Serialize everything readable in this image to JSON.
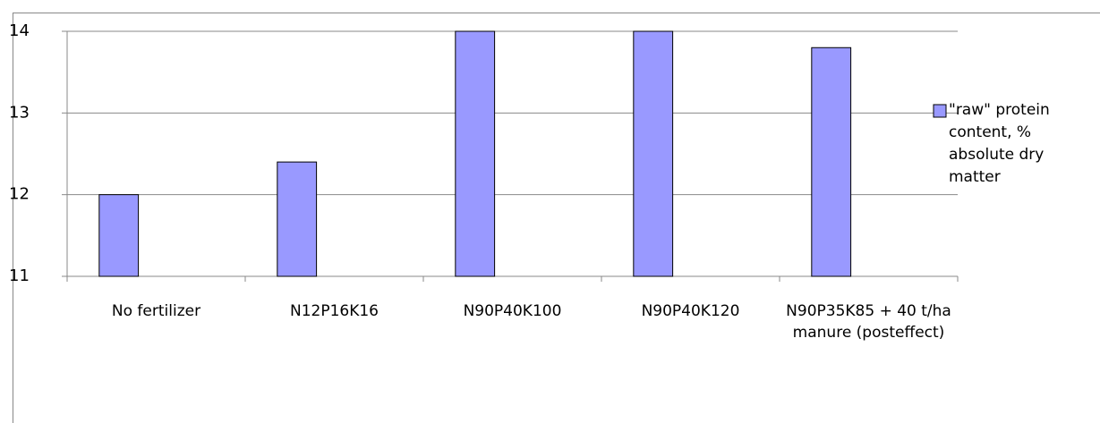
{
  "chart_data": {
    "type": "bar",
    "categories": [
      "No fertilizer",
      "N12P16K16",
      "N90P40K100",
      "N90P40K120",
      "N90P35K85 + 40 t/ha manure (posteffect)"
    ],
    "series": [
      {
        "name": "\"raw\" protein content, % absolute dry matter",
        "color": "#9999ff",
        "values": [
          12,
          12.4,
          14,
          14,
          13.8
        ]
      }
    ],
    "ylim": [
      11,
      14
    ],
    "yticks": [
      11,
      12,
      13,
      14
    ],
    "grid": true,
    "legend": "right"
  }
}
